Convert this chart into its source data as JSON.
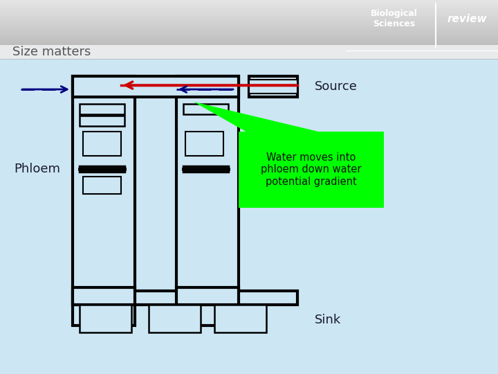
{
  "bg_main_color": "#cce6f4",
  "header_gradient_top": "#c8c8c8",
  "header_gradient_bottom": "#e8e8e8",
  "title_bar_color": "#e0e4e8",
  "title_text": "Size matters",
  "title_color": "#555555",
  "title_fontsize": 13,
  "source_text": "Source",
  "sink_text": "Sink",
  "phloem_text": "Phloem",
  "annotation_text": "Water moves into\nphloem down water\npotential gradient",
  "annotation_bg": "#00ff00",
  "annotation_text_color": "#111111",
  "cell_color": "#cce6f4",
  "line_color": "#000000",
  "red_arrow_color": "#cc0000",
  "blue_dashed_color": "#000080",
  "logo_text1": "Biological",
  "logo_text2": "Sciences",
  "logo_text3": "review"
}
